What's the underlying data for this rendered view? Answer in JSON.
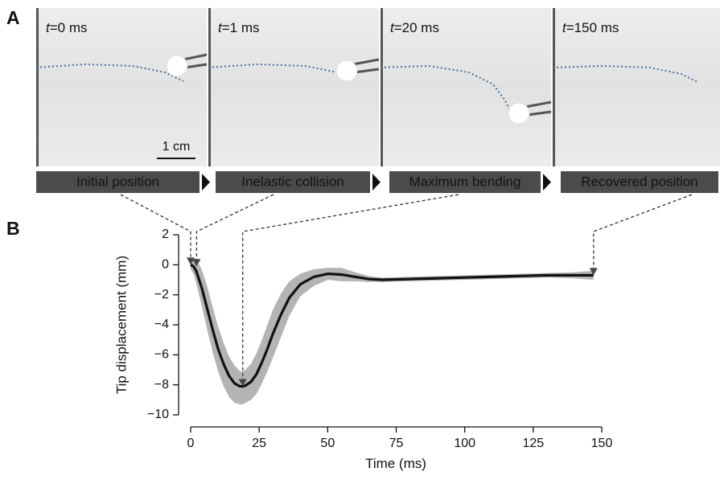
{
  "panel_a": {
    "letter": "A",
    "scale_bar": "1 cm",
    "frames": [
      {
        "symbol": "t",
        "time": "=0 ms",
        "stage": "Initial position"
      },
      {
        "symbol": "t",
        "time": "=1 ms",
        "stage": "Inelastic collision"
      },
      {
        "symbol": "t",
        "time": "=20 ms",
        "stage": "Maximum bending"
      },
      {
        "symbol": "t",
        "time": "=150 ms",
        "stage": "Recovered position"
      }
    ]
  },
  "chart_data": {
    "type": "line",
    "panel": "B",
    "x_label": "Time (ms)",
    "y_label": "Tip displacement (mm)",
    "xlim": [
      0,
      150
    ],
    "ylim": [
      -10,
      2
    ],
    "xticks": [
      0,
      25,
      50,
      75,
      100,
      125,
      150
    ],
    "yticks": [
      2,
      0,
      {
        "value": -2,
        "label": "−2"
      },
      {
        "value": -4,
        "label": "−4"
      },
      {
        "value": -6,
        "label": "−6"
      },
      {
        "value": -8,
        "label": "−8"
      },
      {
        "value": -10,
        "label": "−10"
      }
    ],
    "x": [
      0,
      1,
      2,
      4,
      6,
      8,
      10,
      12,
      14,
      16,
      18,
      19,
      20,
      22,
      24,
      26,
      28,
      30,
      33,
      36,
      40,
      45,
      50,
      55,
      60,
      65,
      70,
      80,
      90,
      100,
      110,
      120,
      130,
      140,
      147
    ],
    "values": [
      0,
      -0.1,
      -0.4,
      -1.5,
      -2.9,
      -4.3,
      -5.6,
      -6.6,
      -7.4,
      -7.9,
      -8.1,
      -8.1,
      -8.05,
      -7.8,
      -7.3,
      -6.5,
      -5.6,
      -4.6,
      -3.3,
      -2.2,
      -1.3,
      -0.8,
      -0.6,
      -0.65,
      -0.8,
      -0.95,
      -1.0,
      -0.95,
      -0.9,
      -0.85,
      -0.8,
      -0.75,
      -0.7,
      -0.7,
      -0.7
    ],
    "color": "#111111",
    "band": {
      "color": "#b4b4b4",
      "upper": [
        0.3,
        0.4,
        0.4,
        -0.3,
        -1.4,
        -2.8,
        -4.1,
        -5.2,
        -6.1,
        -6.7,
        -7.1,
        -7.1,
        -7.0,
        -6.6,
        -5.9,
        -5.0,
        -4.0,
        -3.0,
        -1.9,
        -1.1,
        -0.6,
        -0.3,
        -0.2,
        -0.2,
        -0.5,
        -0.75,
        -0.85,
        -0.8,
        -0.75,
        -0.7,
        -0.65,
        -0.6,
        -0.55,
        -0.5,
        -0.4
      ],
      "lower": [
        -0.3,
        -0.6,
        -1.2,
        -2.7,
        -4.3,
        -5.8,
        -7.1,
        -8.1,
        -8.8,
        -9.2,
        -9.3,
        -9.3,
        -9.2,
        -9.0,
        -8.6,
        -7.9,
        -7.1,
        -6.2,
        -4.8,
        -3.4,
        -2.1,
        -1.4,
        -1.0,
        -1.1,
        -1.1,
        -1.15,
        -1.15,
        -1.1,
        -1.05,
        -1.0,
        -0.95,
        -0.9,
        -0.85,
        -0.9,
        -1.0
      ]
    },
    "arrow_x": [
      0,
      1,
      19,
      147
    ]
  }
}
